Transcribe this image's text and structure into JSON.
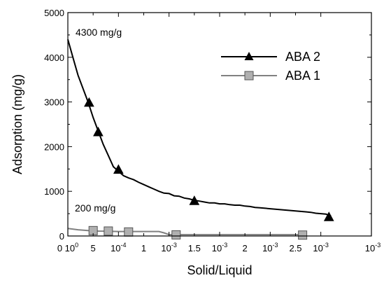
{
  "chart_data": {
    "type": "line",
    "xlabel": "Solid/Liquid",
    "ylabel": "Adsorption (mg/g)",
    "xlim": [
      0,
      3
    ],
    "ylim": [
      0,
      5000
    ],
    "grid": false,
    "legend_position": "top-right",
    "x_ticks": [
      {
        "value": 0,
        "base": "0 1",
        "main": "0",
        "sup": "0"
      },
      {
        "value": 0.25,
        "base": "5",
        "main": "",
        "sup": ""
      },
      {
        "value": 0.5,
        "base": "1",
        "main": "0",
        "sup": "-4"
      },
      {
        "value": 0.75,
        "base": "1",
        "main": "",
        "sup": ""
      },
      {
        "value": 1.0,
        "base": "1",
        "main": "0",
        "sup": "-3"
      },
      {
        "value": 1.25,
        "base": "1.5",
        "main": "",
        "sup": ""
      },
      {
        "value": 1.5,
        "base": "1",
        "main": "0",
        "sup": "-3"
      },
      {
        "value": 1.75,
        "base": "2",
        "main": "",
        "sup": ""
      },
      {
        "value": 2.0,
        "base": "1",
        "main": "0",
        "sup": "-3"
      },
      {
        "value": 2.25,
        "base": "2.5",
        "main": "",
        "sup": ""
      },
      {
        "value": 2.5,
        "base": "1",
        "main": "0",
        "sup": "-3"
      }
    ],
    "y_ticks": [
      0,
      1000,
      2000,
      3000,
      4000,
      5000
    ],
    "series": [
      {
        "name": "ABA 2",
        "color": "#000000",
        "marker": "triangle",
        "line": [
          [
            0,
            4400
          ],
          [
            0.05,
            4000
          ],
          [
            0.1,
            3600
          ],
          [
            0.15,
            3300
          ],
          [
            0.2,
            3000
          ],
          [
            0.25,
            2650
          ],
          [
            0.3,
            2350
          ],
          [
            0.35,
            2050
          ],
          [
            0.4,
            1800
          ],
          [
            0.45,
            1550
          ],
          [
            0.5,
            1450
          ],
          [
            0.55,
            1350
          ],
          [
            0.6,
            1300
          ],
          [
            0.65,
            1260
          ],
          [
            0.7,
            1200
          ],
          [
            0.75,
            1150
          ],
          [
            0.8,
            1100
          ],
          [
            0.85,
            1050
          ],
          [
            0.9,
            1000
          ],
          [
            0.95,
            960
          ],
          [
            1.0,
            950
          ],
          [
            1.05,
            900
          ],
          [
            1.1,
            890
          ],
          [
            1.15,
            850
          ],
          [
            1.2,
            830
          ],
          [
            1.25,
            800
          ],
          [
            1.3,
            780
          ],
          [
            1.35,
            760
          ],
          [
            1.4,
            740
          ],
          [
            1.45,
            740
          ],
          [
            1.5,
            720
          ],
          [
            1.55,
            720
          ],
          [
            1.6,
            700
          ],
          [
            1.65,
            690
          ],
          [
            1.7,
            690
          ],
          [
            1.75,
            670
          ],
          [
            1.8,
            660
          ],
          [
            1.85,
            640
          ],
          [
            1.9,
            630
          ],
          [
            1.95,
            620
          ],
          [
            2.0,
            610
          ],
          [
            2.05,
            600
          ],
          [
            2.1,
            590
          ],
          [
            2.15,
            580
          ],
          [
            2.2,
            570
          ],
          [
            2.25,
            560
          ],
          [
            2.3,
            550
          ],
          [
            2.35,
            540
          ],
          [
            2.4,
            530
          ],
          [
            2.45,
            510
          ],
          [
            2.5,
            500
          ],
          [
            2.55,
            490
          ],
          [
            2.6,
            450
          ]
        ],
        "markers": [
          [
            0.21,
            2980
          ],
          [
            0.3,
            2320
          ],
          [
            0.5,
            1480
          ],
          [
            1.25,
            780
          ],
          [
            2.58,
            420
          ]
        ]
      },
      {
        "name": "ABA 1",
        "color": "#808080",
        "marker": "square",
        "line": [
          [
            0,
            170
          ],
          [
            0.1,
            140
          ],
          [
            0.2,
            120
          ],
          [
            0.3,
            110
          ],
          [
            0.4,
            105
          ],
          [
            0.5,
            100
          ],
          [
            0.6,
            100
          ],
          [
            0.7,
            100
          ],
          [
            0.8,
            100
          ],
          [
            0.9,
            100
          ],
          [
            0.95,
            70
          ],
          [
            1.0,
            30
          ],
          [
            1.1,
            30
          ],
          [
            1.2,
            30
          ],
          [
            1.3,
            30
          ],
          [
            1.4,
            30
          ],
          [
            1.5,
            30
          ],
          [
            1.6,
            30
          ],
          [
            1.7,
            30
          ],
          [
            1.8,
            30
          ],
          [
            1.9,
            30
          ],
          [
            2.0,
            30
          ],
          [
            2.1,
            30
          ],
          [
            2.2,
            30
          ],
          [
            2.3,
            30
          ],
          [
            2.35,
            30
          ]
        ],
        "markers": [
          [
            0.25,
            120
          ],
          [
            0.4,
            110
          ],
          [
            0.6,
            90
          ],
          [
            1.07,
            25
          ],
          [
            2.32,
            20
          ]
        ]
      }
    ],
    "annotations": [
      {
        "text": "4300 mg/g",
        "x": 0.05,
        "y": 4400
      },
      {
        "text": "200 mg/g",
        "x": 0.05,
        "y": 550
      }
    ]
  }
}
